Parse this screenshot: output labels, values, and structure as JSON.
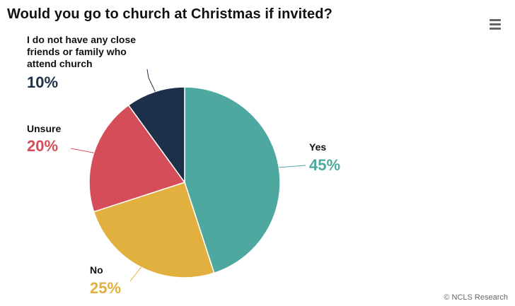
{
  "chart_data": {
    "type": "pie",
    "title": "Would you go to church at Christmas if invited?",
    "slices": [
      {
        "label": "Yes",
        "value": 45,
        "value_label": "45%",
        "color": "#4fa8a0"
      },
      {
        "label": "No",
        "value": 25,
        "value_label": "25%",
        "color": "#e2b03e"
      },
      {
        "label": "Unsure",
        "value": 20,
        "value_label": "20%",
        "color": "#d64d5a"
      },
      {
        "label": "I do not have any close friends or family who attend church",
        "label_lines": [
          "I do not have any close",
          "friends or family who",
          "attend church"
        ],
        "value": 10,
        "value_label": "10%",
        "color": "#1e2f49"
      }
    ],
    "start_position": "12 o'clock",
    "direction": "clockwise",
    "legend": false,
    "credit": "© NCLS Research"
  },
  "toolbar": {
    "menu_icon": "hamburger-menu-icon"
  }
}
